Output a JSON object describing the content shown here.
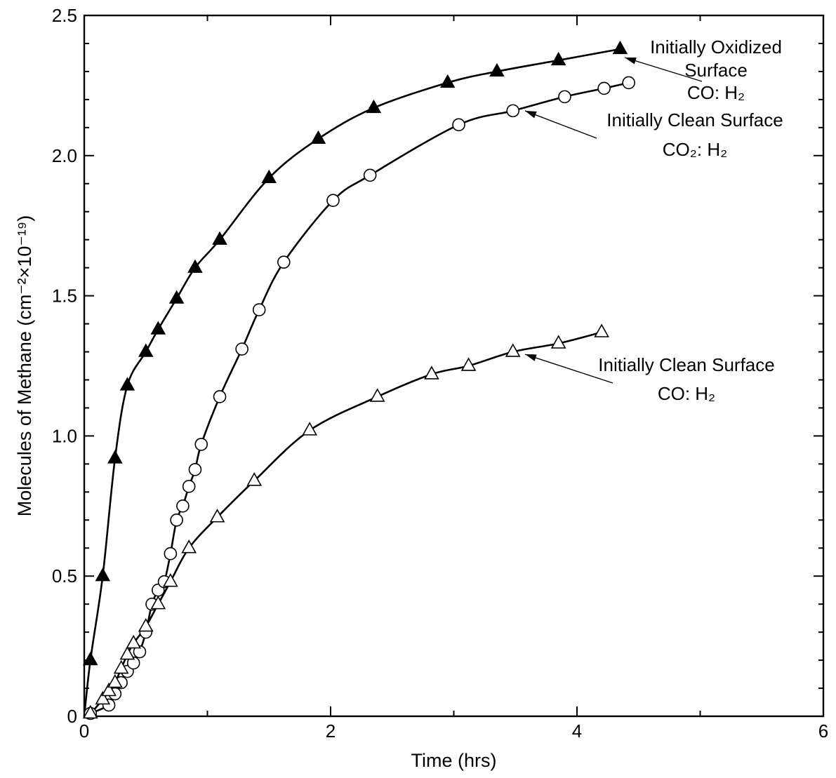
{
  "chart_data": {
    "type": "scatter",
    "xlabel": "Time (hrs)",
    "ylabel": "Molecules of Methane (cm⁻²×10⁻¹⁹)",
    "xlim": [
      0,
      6
    ],
    "ylim": [
      0,
      2.5
    ],
    "x_ticks": [
      0,
      2,
      4,
      6
    ],
    "y_ticks": [
      0,
      0.5,
      1.0,
      1.5,
      2.0,
      2.5
    ],
    "x_tick_labels": [
      "0",
      "2",
      "4",
      "6"
    ],
    "y_tick_labels": [
      "0",
      "0.5",
      "1.0",
      "1.5",
      "2.0",
      "2.5"
    ],
    "grid": false,
    "series": [
      {
        "marker": "filled-triangle",
        "annotation": [
          "Initially Oxidized",
          "Surface",
          "CO: H₂"
        ],
        "x": [
          0.05,
          0.15,
          0.25,
          0.35,
          0.5,
          0.6,
          0.75,
          0.9,
          1.1,
          1.5,
          1.9,
          2.35,
          2.95,
          3.35,
          3.85,
          4.35
        ],
        "y": [
          0.2,
          0.5,
          0.92,
          1.18,
          1.3,
          1.38,
          1.49,
          1.6,
          1.7,
          1.92,
          2.06,
          2.17,
          2.26,
          2.3,
          2.34,
          2.38
        ]
      },
      {
        "marker": "open-circle",
        "annotation": [
          "Initially Clean Surface",
          "CO₂: H₂"
        ],
        "x": [
          0.05,
          0.2,
          0.25,
          0.3,
          0.35,
          0.4,
          0.45,
          0.5,
          0.55,
          0.6,
          0.65,
          0.7,
          0.75,
          0.8,
          0.85,
          0.9,
          0.95,
          1.1,
          1.28,
          1.42,
          1.62,
          2.02,
          2.32,
          3.04,
          3.48,
          3.9,
          4.22,
          4.42
        ],
        "y": [
          0.01,
          0.04,
          0.08,
          0.12,
          0.16,
          0.19,
          0.23,
          0.3,
          0.4,
          0.45,
          0.48,
          0.58,
          0.7,
          0.75,
          0.82,
          0.88,
          0.97,
          1.14,
          1.31,
          1.45,
          1.62,
          1.84,
          1.93,
          2.11,
          2.16,
          2.21,
          2.24,
          2.26
        ]
      },
      {
        "marker": "open-triangle",
        "annotation": [
          "Initially Clean Surface",
          "CO: H₂"
        ],
        "x": [
          0.05,
          0.15,
          0.2,
          0.25,
          0.3,
          0.35,
          0.4,
          0.5,
          0.6,
          0.7,
          0.85,
          1.08,
          1.38,
          1.83,
          2.38,
          2.82,
          3.12,
          3.48,
          3.85,
          4.2
        ],
        "y": [
          0.01,
          0.06,
          0.09,
          0.12,
          0.17,
          0.22,
          0.26,
          0.32,
          0.4,
          0.48,
          0.6,
          0.71,
          0.84,
          1.02,
          1.14,
          1.22,
          1.25,
          1.3,
          1.33,
          1.37
        ]
      }
    ]
  }
}
